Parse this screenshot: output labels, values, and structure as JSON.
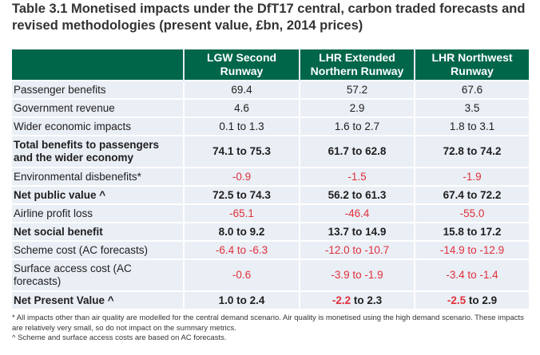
{
  "title": "Table 3.1 Monetised impacts under the DfT17 central, carbon traded forecasts and revised methodologies (present value, £bn, 2014 prices)",
  "colors": {
    "header_bg": "#00664a",
    "row_bg": "#eaeef5",
    "negative": "#e0303a"
  },
  "table": {
    "headers": [
      "",
      "LGW Second Runway",
      "LHR Extended Northern Runway",
      "LHR Northwest Runway"
    ],
    "rows": [
      {
        "label": "Passenger benefits",
        "bold": false,
        "values": [
          "69.4",
          "57.2",
          "67.6"
        ],
        "negative": [
          false,
          false,
          false
        ]
      },
      {
        "label": "Government revenue",
        "bold": false,
        "values": [
          "4.6",
          "2.9",
          "3.5"
        ],
        "negative": [
          false,
          false,
          false
        ]
      },
      {
        "label": "Wider economic impacts",
        "bold": false,
        "values": [
          "0.1 to 1.3",
          "1.6 to 2.7",
          "1.8 to 3.1"
        ],
        "negative": [
          false,
          false,
          false
        ]
      },
      {
        "label": "Total benefits to passengers and the wider economy",
        "bold": true,
        "values": [
          "74.1 to 75.3",
          "61.7 to 62.8",
          "72.8 to 74.2"
        ],
        "negative": [
          false,
          false,
          false
        ]
      },
      {
        "label": "Environmental disbenefits*",
        "bold": false,
        "values": [
          "-0.9",
          "-1.5",
          "-1.9"
        ],
        "negative": [
          true,
          true,
          true
        ]
      },
      {
        "label": "Net public value ^",
        "bold": true,
        "values": [
          "72.5 to 74.3",
          "56.2 to 61.3",
          "67.4 to 72.2"
        ],
        "negative": [
          false,
          false,
          false
        ]
      },
      {
        "label": "Airline profit loss",
        "bold": false,
        "values": [
          "-65.1",
          "-46.4",
          "-55.0"
        ],
        "negative": [
          true,
          true,
          true
        ]
      },
      {
        "label": "Net social benefit",
        "bold": true,
        "values": [
          "8.0 to 9.2",
          "13.7 to 14.9",
          "15.8 to 17.2"
        ],
        "negative": [
          false,
          false,
          false
        ]
      },
      {
        "label": "Scheme cost (AC forecasts)",
        "bold": false,
        "values": [
          "-6.4 to -6.3",
          "-12.0 to -10.7",
          "-14.9 to -12.9"
        ],
        "negative": [
          true,
          true,
          true
        ]
      },
      {
        "label": "Surface access cost (AC forecasts)",
        "bold": false,
        "values": [
          "-0.6",
          "-3.9 to -1.9",
          "-3.4 to -1.4"
        ],
        "negative": [
          true,
          true,
          true
        ]
      },
      {
        "label": "Net Present Value ^",
        "bold": true,
        "values": [
          "1.0 to 2.4",
          "-2.2 to 2.3",
          "-2.5 to 2.9"
        ],
        "negative": [
          false,
          "partial",
          "partial"
        ]
      }
    ]
  },
  "footnotes": [
    "* All impacts other than air quality are modelled  for the central demand  scenario. Air quality is monetised using the high demand scenario. These impacts are relatively very small, so do not impact on the summary metrics.",
    "^ Scheme and surface access costs are based on AC forecasts."
  ]
}
